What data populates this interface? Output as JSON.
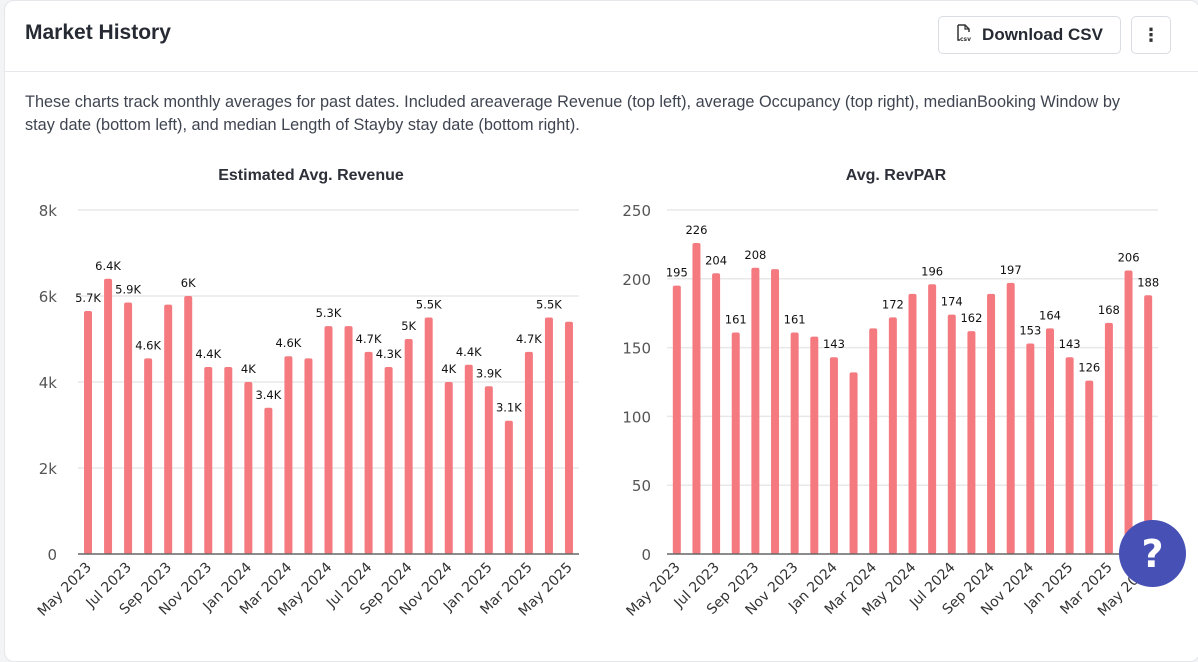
{
  "header": {
    "title": "Market History",
    "download_label": "Download CSV",
    "download_icon": "csv-file-icon",
    "more_icon": "vertical-ellipsis-icon",
    "more_glyph": "⋮"
  },
  "description": "These charts track monthly averages for past dates. Included areaverage Revenue (top left), average Occupancy (top right), medianBooking Window by stay date (bottom left), and median Length of Stayby stay date (bottom right).",
  "help": {
    "glyph": "?",
    "icon": "help-icon"
  },
  "colors": {
    "bar": "#f47a80",
    "accent": "#4750b5",
    "grid": "#e8e8e8",
    "axis": "#666666"
  },
  "chart_data": [
    {
      "type": "bar",
      "title": "Estimated Avg. Revenue",
      "xlabel": "",
      "ylabel": "",
      "ylim": [
        0,
        8000
      ],
      "yticks": [
        0,
        2000,
        4000,
        6000,
        8000
      ],
      "ytick_labels": [
        "0",
        "2k",
        "4k",
        "6k",
        "8k"
      ],
      "grid": true,
      "categories": [
        "May 2023",
        "Jun 2023",
        "Jul 2023",
        "Aug 2023",
        "Sep 2023",
        "Oct 2023",
        "Nov 2023",
        "Dec 2023",
        "Jan 2024",
        "Feb 2024",
        "Mar 2024",
        "Apr 2024",
        "May 2024",
        "Jun 2024",
        "Jul 2024",
        "Aug 2024",
        "Sep 2024",
        "Oct 2024",
        "Nov 2024",
        "Dec 2024",
        "Jan 2025",
        "Feb 2025",
        "Mar 2025",
        "Apr 2025",
        "May 2025"
      ],
      "xtick_labels": [
        "May 2023",
        "Jul 2023",
        "Sep 2023",
        "Nov 2023",
        "Jan 2024",
        "Mar 2024",
        "May 2024",
        "Jul 2024",
        "Sep 2024",
        "Nov 2024",
        "Jan 2025",
        "Mar 2025",
        "May 2025"
      ],
      "values": [
        5650,
        6400,
        5850,
        4550,
        5800,
        6000,
        4350,
        4350,
        4000,
        3400,
        4600,
        4550,
        5300,
        5300,
        4700,
        4350,
        5000,
        5500,
        4000,
        4400,
        3900,
        3100,
        4700,
        5500,
        5400
      ],
      "data_labels": [
        "5.7K",
        "6.4K",
        "5.9K",
        "4.6K",
        "",
        "6K",
        "4.4K",
        "",
        "4K",
        "3.4K",
        "4.6K",
        "",
        "5.3K",
        "",
        "4.7K",
        "4.3K",
        "5K",
        "5.5K",
        "4K",
        "4.4K",
        "3.9K",
        "3.1K",
        "4.7K",
        "5.5K",
        ""
      ]
    },
    {
      "type": "bar",
      "title": "Avg. RevPAR",
      "xlabel": "",
      "ylabel": "",
      "ylim": [
        0,
        250
      ],
      "yticks": [
        0,
        50,
        100,
        150,
        200,
        250
      ],
      "ytick_labels": [
        "0",
        "50",
        "100",
        "150",
        "200",
        "250"
      ],
      "grid": true,
      "categories": [
        "May 2023",
        "Jun 2023",
        "Jul 2023",
        "Aug 2023",
        "Sep 2023",
        "Oct 2023",
        "Nov 2023",
        "Dec 2023",
        "Jan 2024",
        "Feb 2024",
        "Mar 2024",
        "Apr 2024",
        "May 2024",
        "Jun 2024",
        "Jul 2024",
        "Aug 2024",
        "Sep 2024",
        "Oct 2024",
        "Nov 2024",
        "Dec 2024",
        "Jan 2025",
        "Feb 2025",
        "Mar 2025",
        "Apr 2025",
        "May 2025"
      ],
      "xtick_labels": [
        "May 2023",
        "Jul 2023",
        "Sep 2023",
        "Nov 2023",
        "Jan 2024",
        "Mar 2024",
        "May 2024",
        "Jul 2024",
        "Sep 2024",
        "Nov 2024",
        "Jan 2025",
        "Mar 2025",
        "May 2025"
      ],
      "values": [
        195,
        226,
        204,
        161,
        208,
        207,
        161,
        158,
        143,
        132,
        164,
        172,
        189,
        196,
        174,
        162,
        189,
        197,
        153,
        164,
        143,
        126,
        168,
        206,
        188
      ],
      "data_labels": [
        "195",
        "226",
        "204",
        "161",
        "208",
        "",
        "161",
        "",
        "143",
        "",
        "",
        "172",
        "",
        "196",
        "174",
        "162",
        "",
        "197",
        "153",
        "164",
        "143",
        "126",
        "168",
        "206",
        "188"
      ]
    }
  ]
}
